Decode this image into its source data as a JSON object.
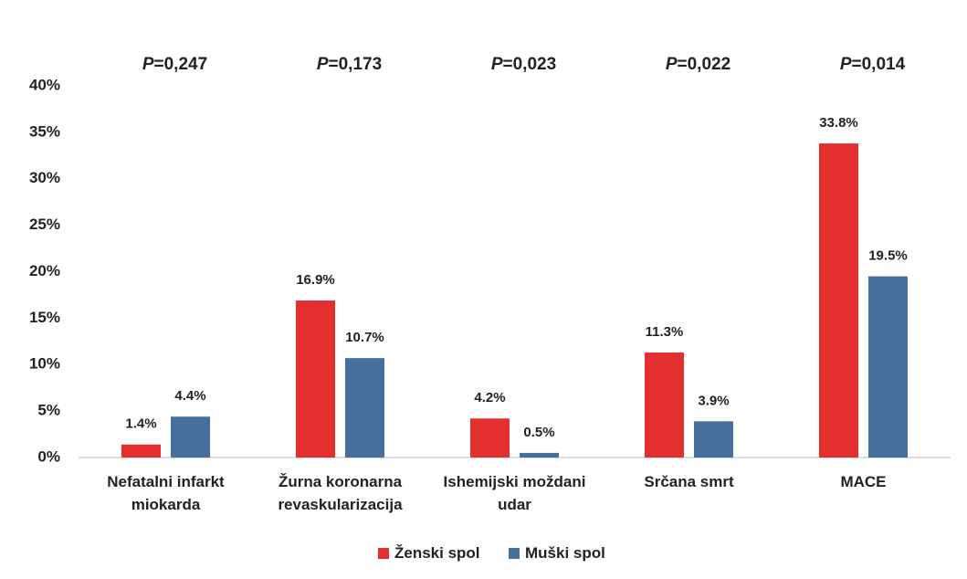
{
  "chart_data": {
    "type": "bar",
    "categories": [
      "Nefatalni infarkt miokarda",
      "Žurna koronarna revaskularizacija",
      "Ishemijski moždani udar",
      "Srčana smrt",
      "MACE"
    ],
    "series": [
      {
        "name": "Ženski spol",
        "color": "#e3302f",
        "values": [
          1.4,
          16.9,
          4.2,
          11.3,
          33.8
        ],
        "value_labels": [
          "1.4%",
          "16.9%",
          "4.2%",
          "11.3%",
          "33.8%"
        ]
      },
      {
        "name": "Muški spol",
        "color": "#46709c",
        "values": [
          4.4,
          10.7,
          0.5,
          3.9,
          19.5
        ],
        "value_labels": [
          "4.4%",
          "10.7%",
          "0.5%",
          "3.9%",
          "19.5%"
        ]
      }
    ],
    "annotations": [
      "P=0,247",
      "P=0,173",
      "P=0,023",
      "P=0,022",
      "P=0,014"
    ],
    "ylim": [
      0,
      40
    ],
    "yticks": [
      {
        "value": 0,
        "label": "0%"
      },
      {
        "value": 5,
        "label": "5%"
      },
      {
        "value": 10,
        "label": "10%"
      },
      {
        "value": 15,
        "label": "15%"
      },
      {
        "value": 20,
        "label": "20%"
      },
      {
        "value": 25,
        "label": "25%"
      },
      {
        "value": 30,
        "label": "30%"
      },
      {
        "value": 35,
        "label": "35%"
      },
      {
        "value": 40,
        "label": "40%"
      }
    ],
    "grid": false,
    "legend": "bottom"
  }
}
